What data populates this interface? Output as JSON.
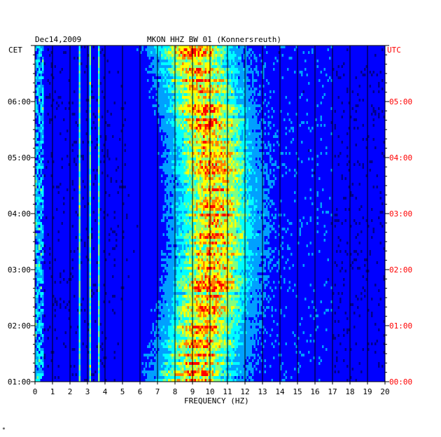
{
  "chart_data": {
    "type": "heatmap",
    "date_label": "Dec14,2009",
    "title": "MKON HHZ BW 01 (Konnersreuth)",
    "xlabel": "FREQUENCY (HZ)",
    "x_ticks": [
      "0",
      "1",
      "2",
      "3",
      "4",
      "5",
      "6",
      "7",
      "8",
      "9",
      "10",
      "11",
      "12",
      "13",
      "14",
      "15",
      "16",
      "17",
      "18",
      "19",
      "20"
    ],
    "xlim": [
      0,
      20
    ],
    "left_axis_label": "CET",
    "right_axis_label": "UTC",
    "left_ticks": [
      "06:00",
      "05:00",
      "04:00",
      "03:00",
      "02:00",
      "01:00"
    ],
    "right_ticks": [
      "05:00",
      "04:00",
      "03:00",
      "02:00",
      "01:00",
      "00:00"
    ],
    "grid_vertical_lines": true,
    "colormap": [
      "#00008b",
      "#0000ff",
      "#00a0ff",
      "#00ffff",
      "#80ff80",
      "#ffff00",
      "#ff8000",
      "#ff0000"
    ],
    "energy_band_hz": [
      7,
      12
    ],
    "narrowband_lines_hz": [
      2.5,
      3.1,
      3.6
    ]
  },
  "footer_mark": "*"
}
